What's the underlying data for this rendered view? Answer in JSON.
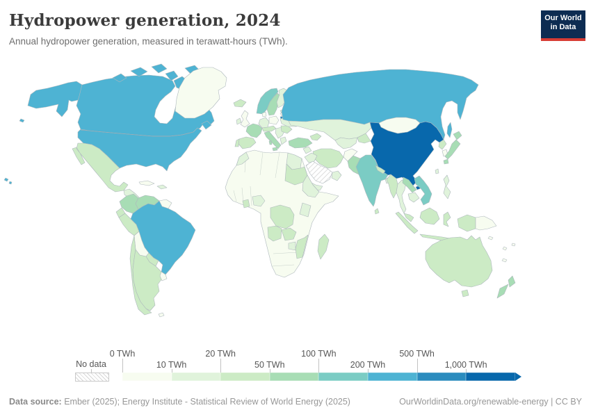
{
  "header": {
    "title": "Hydropower generation, 2024",
    "subtitle": "Annual hydropower generation, measured in terawatt-hours (TWh).",
    "logo_line1": "Our World",
    "logo_line2": "in Data",
    "logo_bg": "#0d2c52",
    "logo_accent": "#d73c34"
  },
  "footer": {
    "source_label": "Data source:",
    "source_text": " Ember (2025); Energy Institute - Statistical Review of World Energy (2025)",
    "right_text": "OurWorldinData.org/renewable-energy | CC BY"
  },
  "legend": {
    "no_data_label": "No data",
    "ticks": [
      {
        "text": "0 TWh",
        "row": "top"
      },
      {
        "text": "10 TWh",
        "row": "bottom"
      },
      {
        "text": "20 TWh",
        "row": "top"
      },
      {
        "text": "50 TWh",
        "row": "bottom"
      },
      {
        "text": "100 TWh",
        "row": "top"
      },
      {
        "text": "200 TWh",
        "row": "bottom"
      },
      {
        "text": "500 TWh",
        "row": "top"
      },
      {
        "text": "1,000 TWh",
        "row": "bottom"
      }
    ],
    "bucket_order": [
      "b0",
      "b1",
      "b2",
      "b3",
      "b4",
      "b5",
      "b6",
      "b7"
    ]
  },
  "map": {
    "palette": {
      "b0": "#f7fcf0",
      "b1": "#e0f3db",
      "b2": "#ccebc5",
      "b3": "#a8ddb5",
      "b4": "#7bccc4",
      "b5": "#4eb3d3",
      "b6": "#2b8cbe",
      "b7": "#0868ac"
    },
    "no_data_fill": "hatch",
    "regions": {
      "alaska": "b5",
      "canada": "b5",
      "canada-islands": "b5",
      "newfoundland": "b5",
      "usa": "b5",
      "hawaii": "b5",
      "greenland": "b0",
      "iceland": "b2",
      "mexico": "b2",
      "central-america": "b1",
      "cuba": "b0",
      "hispaniola": "b1",
      "colombia": "b3",
      "venezuela": "b3",
      "guyanas": "b0",
      "ecuador": "b2",
      "peru": "b2",
      "brazil": "b5",
      "bolivia": "b0",
      "paraguay": "b2",
      "chile": "b2",
      "argentina": "b2",
      "uruguay": "b0",
      "falklands": "b0",
      "norway": "b4",
      "sweden": "b3",
      "finland": "b1",
      "baltics": "b1",
      "baltic-dark": "b6",
      "uk": "b0",
      "ireland": "b1",
      "denmark": "b0",
      "germany": "b1",
      "poland": "b0",
      "france": "b3",
      "spain": "b2",
      "portugal": "b2",
      "alpine": "b2",
      "italy": "b3",
      "balkans": "b1",
      "greece": "b1",
      "romania": "b2",
      "ukraine": "b1",
      "belarus": "b0",
      "turkey": "b3",
      "caucasus": "b2",
      "russia": "b5",
      "sakhalin": "b5",
      "kazakhstan": "b1",
      "turkmen-uzbek": "b1",
      "kyrgyz-tajik": "b2",
      "mongolia": "b0",
      "china": "b7",
      "nkorea": "b2",
      "skorea": "b0",
      "japan": "b3",
      "taiwan": "b1",
      "india": "b4",
      "sri-lanka": "b2",
      "nepal": "b2",
      "bangladesh": "b1",
      "pakistan": "b3",
      "afghanistan": "b0",
      "iran": "b2",
      "iraq": "b1",
      "syria": "b1",
      "saudi": "nodata",
      "yemen": "b1",
      "oman": "b1",
      "myanmar": "b2",
      "thailand": "b1",
      "laos": "b3",
      "vietnam": "b4",
      "cambodia": "b1",
      "malaysia": "b2",
      "sumatra": "b2",
      "java": "b2",
      "borneo": "b2",
      "sulawesi": "b2",
      "philippines": "b1",
      "png-west": "b2",
      "png-east": "b0",
      "africa-base": "b0",
      "morocco": "b1",
      "egypt": "b1",
      "sudan": "b2",
      "ethiopia": "b1",
      "nigeria": "b1",
      "ghana": "b2",
      "drc": "b2",
      "angola": "b2",
      "zambia": "b2",
      "mozambique": "b2",
      "zimbabwe": "b1",
      "madagascar": "b2",
      "kenya-tanzania": "b1",
      "australia": "b2",
      "tasmania": "b2",
      "new-zealand": "b3",
      "pacific-islands": "b0"
    }
  },
  "chart_data": {
    "type": "choropleth_map",
    "title": "Hydropower generation, 2024",
    "subtitle": "Annual hydropower generation, measured in terawatt-hours (TWh).",
    "unit": "TWh",
    "projection": "world",
    "legend_position": "bottom",
    "color_scale": {
      "scheme": "GnBu (greens to blues)",
      "threshold_labels": [
        "0 TWh",
        "10 TWh",
        "20 TWh",
        "50 TWh",
        "100 TWh",
        "200 TWh",
        "500 TWh",
        "1,000 TWh"
      ],
      "bucket_colors": [
        "#f7fcf0",
        "#e0f3db",
        "#ccebc5",
        "#a8ddb5",
        "#7bccc4",
        "#4eb3d3",
        "#2b8cbe",
        "#0868ac"
      ],
      "no_data": "white with gray diagonal hatching"
    },
    "regions_by_bucket": {
      "1,000+ TWh": [
        "China"
      ],
      "200-500 TWh": [
        "Canada",
        "United States",
        "Brazil",
        "Russia"
      ],
      "100-200 TWh": [
        "Norway",
        "India",
        "Vietnam"
      ],
      "50-100 TWh": [
        "Sweden",
        "France",
        "Italy",
        "Turkey",
        "Japan",
        "Pakistan",
        "Laos",
        "Colombia",
        "Venezuela",
        "New Zealand"
      ],
      "20-50 TWh": [
        "Mexico",
        "Iceland",
        "Spain",
        "Portugal",
        "Switzerland/Austria",
        "Romania",
        "Peru",
        "Ecuador",
        "Chile",
        "Argentina",
        "Paraguay",
        "Iran",
        "Myanmar",
        "Malaysia",
        "Indonesia",
        "North Korea",
        "Nepal",
        "Sri Lanka",
        "Tajikistan/Kyrgyzstan",
        "Georgia",
        "Ghana",
        "DR Congo",
        "Angola",
        "Zambia",
        "Mozambique",
        "Madagascar",
        "Sudan",
        "Australia"
      ],
      "10-20 TWh": [
        "Germany",
        "Finland",
        "Ireland",
        "Ukraine",
        "Greece",
        "Balkans",
        "Kazakhstan",
        "Uzbekistan/Turkmenistan",
        "Iraq",
        "Syria",
        "Egypt",
        "Ethiopia",
        "Nigeria",
        "Morocco",
        "Kenya/Tanzania",
        "Zimbabwe",
        "Thailand",
        "Cambodia",
        "Bangladesh",
        "Philippines",
        "Taiwan",
        "Yemen",
        "Oman",
        "Central America",
        "Hispaniola"
      ],
      "0-10 TWh": [
        "United Kingdom",
        "Poland",
        "Belarus",
        "Denmark",
        "Greenland",
        "Mongolia",
        "South Korea",
        "Afghanistan",
        "Bolivia",
        "Uruguay",
        "Cuba",
        "Guyanas",
        "Papua New Guinea",
        "most of Sahara Africa",
        "Pacific islands"
      ],
      "No data": [
        "Saudi Arabia"
      ]
    }
  }
}
